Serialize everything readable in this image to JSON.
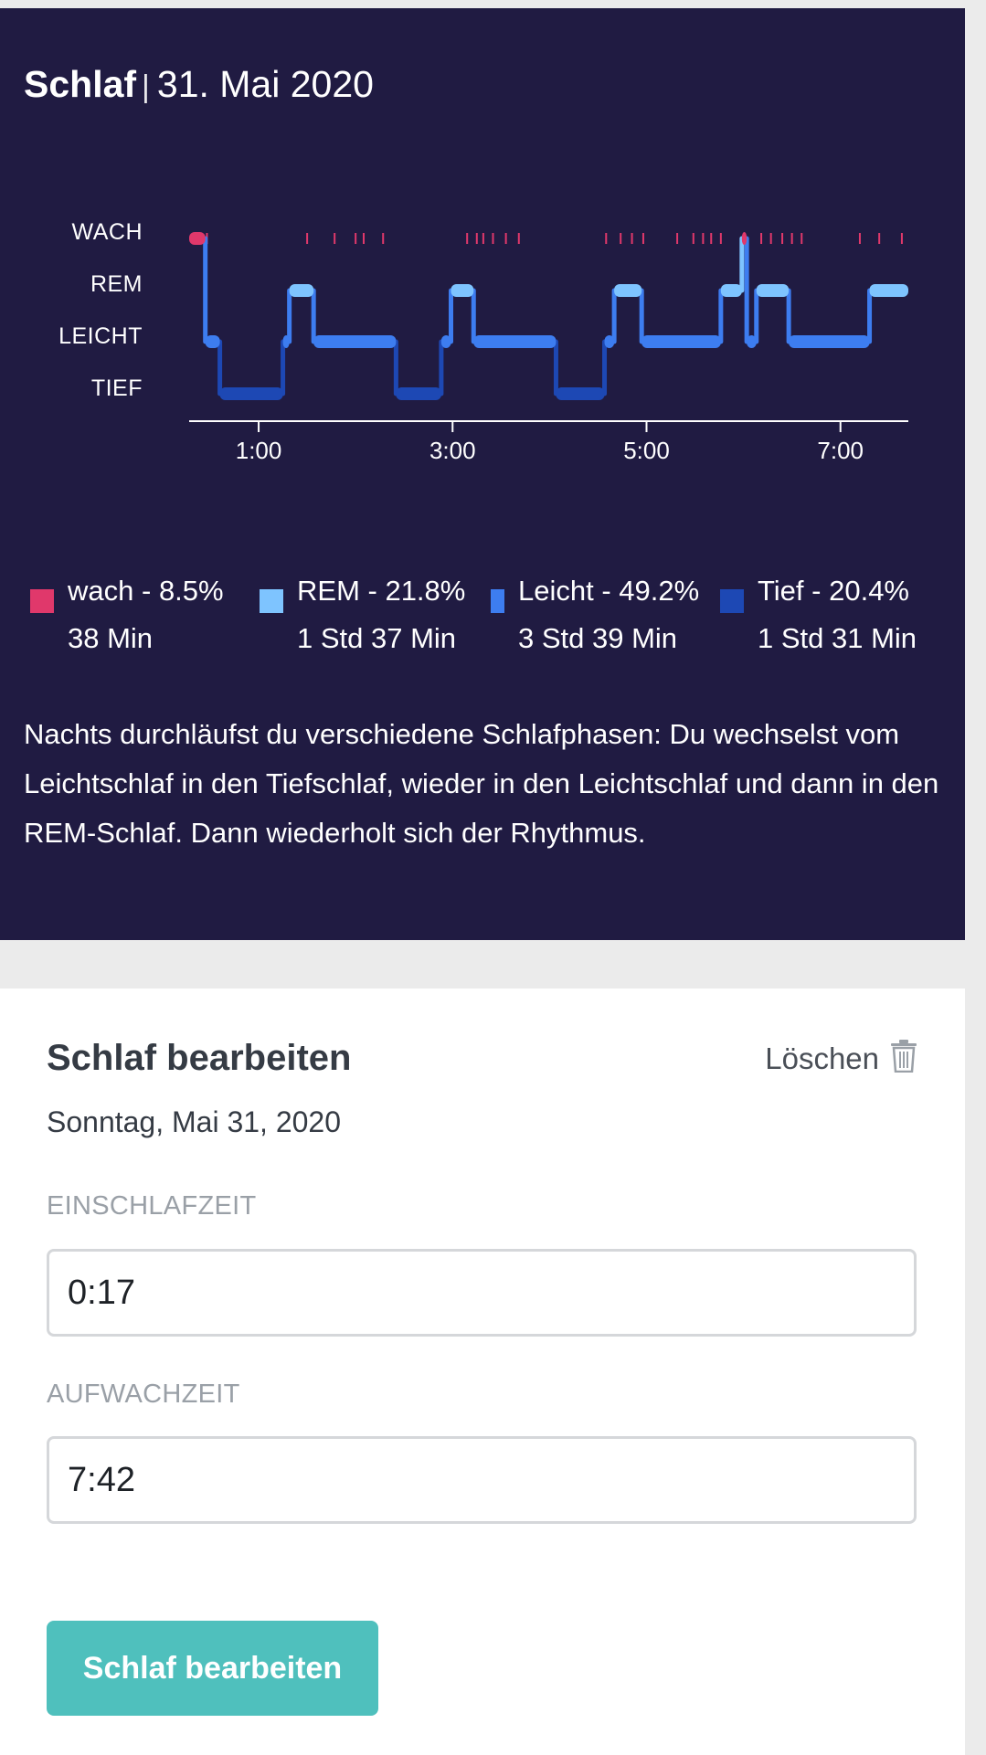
{
  "sleep": {
    "title": "Schlaf",
    "separator": "|",
    "date": "31. Mai 2020",
    "stages": [
      "WACH",
      "REM",
      "LEICHT",
      "TIEF"
    ],
    "legend": [
      {
        "name": "wach",
        "percent": "8.5%",
        "duration": "38 Min",
        "color": "#e0386b"
      },
      {
        "name": "REM",
        "percent": "21.8%",
        "duration": "1 Std 37 Min",
        "color": "#7ec4ff"
      },
      {
        "name": "Leicht",
        "percent": "49.2%",
        "duration": "3 Std 39 Min",
        "color": "#3d7df0"
      },
      {
        "name": "Tief",
        "percent": "20.4%",
        "duration": "1 Std 31 Min",
        "color": "#1d48b4"
      }
    ],
    "description": "Nachts durchläufst du verschiedene Schlafphasen: Du wechselst vom Leichtschlaf in den Tiefschlaf, wieder in den Leichtschlaf und dann in den REM-Schlaf. Dann wiederholt sich der Rhythmus."
  },
  "chart_data": {
    "type": "line",
    "x_unit": "time of night (h:mm)",
    "x_ticks": [
      "1:00",
      "3:00",
      "5:00",
      "7:00"
    ],
    "x_range": [
      "0:17",
      "7:42"
    ],
    "y_categories": [
      "WACH",
      "REM",
      "LEICHT",
      "TIEF"
    ],
    "hypnogram": [
      {
        "start": "0:17",
        "end": "0:27",
        "stage": "WACH"
      },
      {
        "start": "0:27",
        "end": "0:36",
        "stage": "LEICHT"
      },
      {
        "start": "0:36",
        "end": "1:15",
        "stage": "TIEF"
      },
      {
        "start": "1:15",
        "end": "1:19",
        "stage": "LEICHT"
      },
      {
        "start": "1:19",
        "end": "1:34",
        "stage": "REM"
      },
      {
        "start": "1:34",
        "end": "2:25",
        "stage": "LEICHT"
      },
      {
        "start": "2:25",
        "end": "2:53",
        "stage": "TIEF"
      },
      {
        "start": "2:53",
        "end": "2:59",
        "stage": "LEICHT"
      },
      {
        "start": "2:59",
        "end": "3:13",
        "stage": "REM"
      },
      {
        "start": "3:13",
        "end": "4:04",
        "stage": "LEICHT"
      },
      {
        "start": "4:04",
        "end": "4:34",
        "stage": "TIEF"
      },
      {
        "start": "4:34",
        "end": "4:40",
        "stage": "LEICHT"
      },
      {
        "start": "4:40",
        "end": "4:57",
        "stage": "REM"
      },
      {
        "start": "4:57",
        "end": "5:46",
        "stage": "LEICHT"
      },
      {
        "start": "5:46",
        "end": "5:59",
        "stage": "REM"
      },
      {
        "start": "5:59",
        "end": "6:02",
        "stage": "WACH"
      },
      {
        "start": "6:02",
        "end": "6:08",
        "stage": "LEICHT"
      },
      {
        "start": "6:08",
        "end": "6:28",
        "stage": "REM"
      },
      {
        "start": "6:28",
        "end": "7:18",
        "stage": "LEICHT"
      },
      {
        "start": "7:18",
        "end": "7:42",
        "stage": "REM"
      }
    ],
    "brief_wake_marks": [
      "0:28",
      "1:30",
      "1:47",
      "2:00",
      "2:05",
      "2:17",
      "3:09",
      "3:15",
      "3:19",
      "3:25",
      "3:33",
      "3:41",
      "4:35",
      "4:44",
      "4:51",
      "4:58",
      "5:19",
      "5:29",
      "5:35",
      "5:40",
      "5:46",
      "6:11",
      "6:17",
      "6:24",
      "6:30",
      "6:36",
      "7:12",
      "7:24",
      "7:38"
    ],
    "colors": {
      "WACH": "#e0386b",
      "REM": "#7ec4ff",
      "LEICHT": "#3d7df0",
      "TIEF": "#1d48b4"
    }
  },
  "edit": {
    "heading": "Schlaf bearbeiten",
    "delete_label": "Löschen",
    "delete_icon": "trash-icon",
    "date": "Sonntag, Mai 31, 2020",
    "sleep_time_label": "EINSCHLAFZEIT",
    "sleep_time_value": "0:17",
    "wake_time_label": "AUFWACHZEIT",
    "wake_time_value": "7:42",
    "submit_label": "Schlaf bearbeiten"
  }
}
